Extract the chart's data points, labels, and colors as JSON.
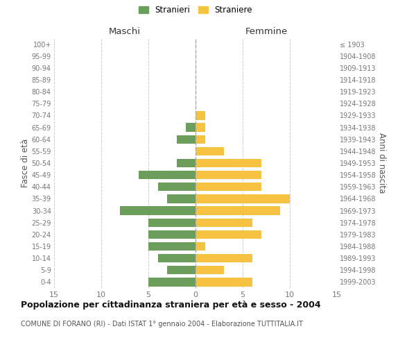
{
  "age_groups": [
    "0-4",
    "5-9",
    "10-14",
    "15-19",
    "20-24",
    "25-29",
    "30-34",
    "35-39",
    "40-44",
    "45-49",
    "50-54",
    "55-59",
    "60-64",
    "65-69",
    "70-74",
    "75-79",
    "80-84",
    "85-89",
    "90-94",
    "95-99",
    "100+"
  ],
  "birth_years": [
    "1999-2003",
    "1994-1998",
    "1989-1993",
    "1984-1988",
    "1979-1983",
    "1974-1978",
    "1969-1973",
    "1964-1968",
    "1959-1963",
    "1954-1958",
    "1949-1953",
    "1944-1948",
    "1939-1943",
    "1934-1938",
    "1929-1933",
    "1924-1928",
    "1919-1923",
    "1914-1918",
    "1909-1913",
    "1904-1908",
    "≤ 1903"
  ],
  "males": [
    5,
    3,
    4,
    5,
    5,
    5,
    8,
    3,
    4,
    6,
    2,
    0,
    2,
    1,
    0,
    0,
    0,
    0,
    0,
    0,
    0
  ],
  "females": [
    6,
    3,
    6,
    1,
    7,
    6,
    9,
    10,
    7,
    7,
    7,
    3,
    1,
    1,
    1,
    0,
    0,
    0,
    0,
    0,
    0
  ],
  "male_color": "#6a9e5a",
  "female_color": "#f5c242",
  "background_color": "#ffffff",
  "grid_color": "#cccccc",
  "title": "Popolazione per cittadinanza straniera per età e sesso - 2004",
  "subtitle": "COMUNE DI FORANO (RI) - Dati ISTAT 1° gennaio 2004 - Elaborazione TUTTITALIA.IT",
  "ylabel_left": "Fasce di età",
  "ylabel_right": "Anni di nascita",
  "header_left": "Maschi",
  "header_right": "Femmine",
  "legend_male": "Stranieri",
  "legend_female": "Straniere",
  "xlim": 15
}
